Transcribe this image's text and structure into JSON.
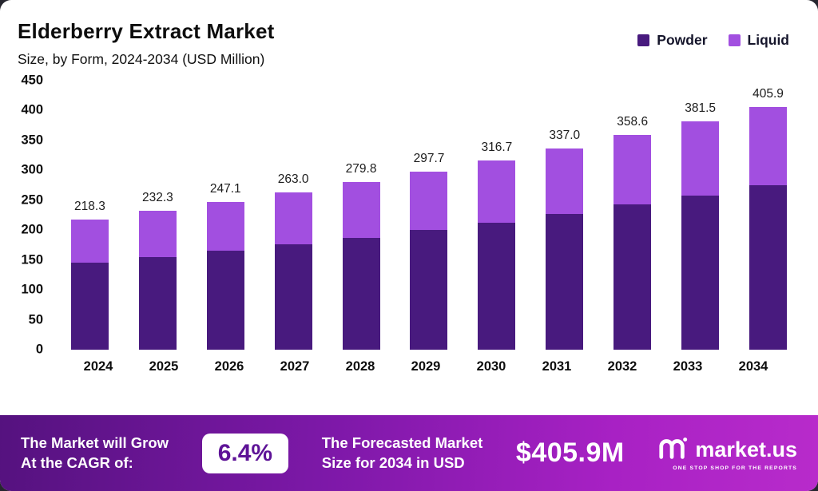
{
  "chart_data": {
    "type": "bar",
    "stacked": true,
    "title": "Elderberry Extract Market",
    "subtitle": "Size, by Form, 2024-2034 (USD Million)",
    "legend_position": "top-right",
    "grid": false,
    "ylim": [
      0,
      450
    ],
    "yticks": [
      0,
      50,
      100,
      150,
      200,
      250,
      300,
      350,
      400,
      450
    ],
    "categories": [
      "2024",
      "2025",
      "2026",
      "2027",
      "2028",
      "2029",
      "2030",
      "2031",
      "2032",
      "2033",
      "2034"
    ],
    "series": [
      {
        "name": "Powder",
        "color": "#481a7e",
        "values": [
          145.0,
          155.0,
          165.5,
          176.0,
          187.5,
          200.5,
          213.0,
          227.5,
          242.5,
          258.0,
          275.0
        ]
      },
      {
        "name": "Liquid",
        "color": "#a24fe0",
        "values": [
          73.3,
          77.3,
          81.6,
          87.0,
          92.3,
          97.2,
          103.7,
          109.5,
          116.1,
          123.5,
          130.9
        ]
      }
    ],
    "totals": [
      218.3,
      232.3,
      247.1,
      263.0,
      279.8,
      297.7,
      316.7,
      337.0,
      358.6,
      381.5,
      405.9
    ],
    "total_labels": [
      "218.3",
      "232.3",
      "247.1",
      "263.0",
      "279.8",
      "297.7",
      "316.7",
      "337.0",
      "358.6",
      "381.5",
      "405.9"
    ]
  },
  "footer": {
    "left_line1": "The Market will Grow",
    "left_line2": "At the CAGR of:",
    "cagr": "6.4%",
    "mid_line1": "The Forecasted Market",
    "mid_line2": "Size for 2034 in USD",
    "value": "$405.9M",
    "brand": "market.us",
    "tagline": "ONE STOP SHOP FOR THE REPORTS"
  }
}
